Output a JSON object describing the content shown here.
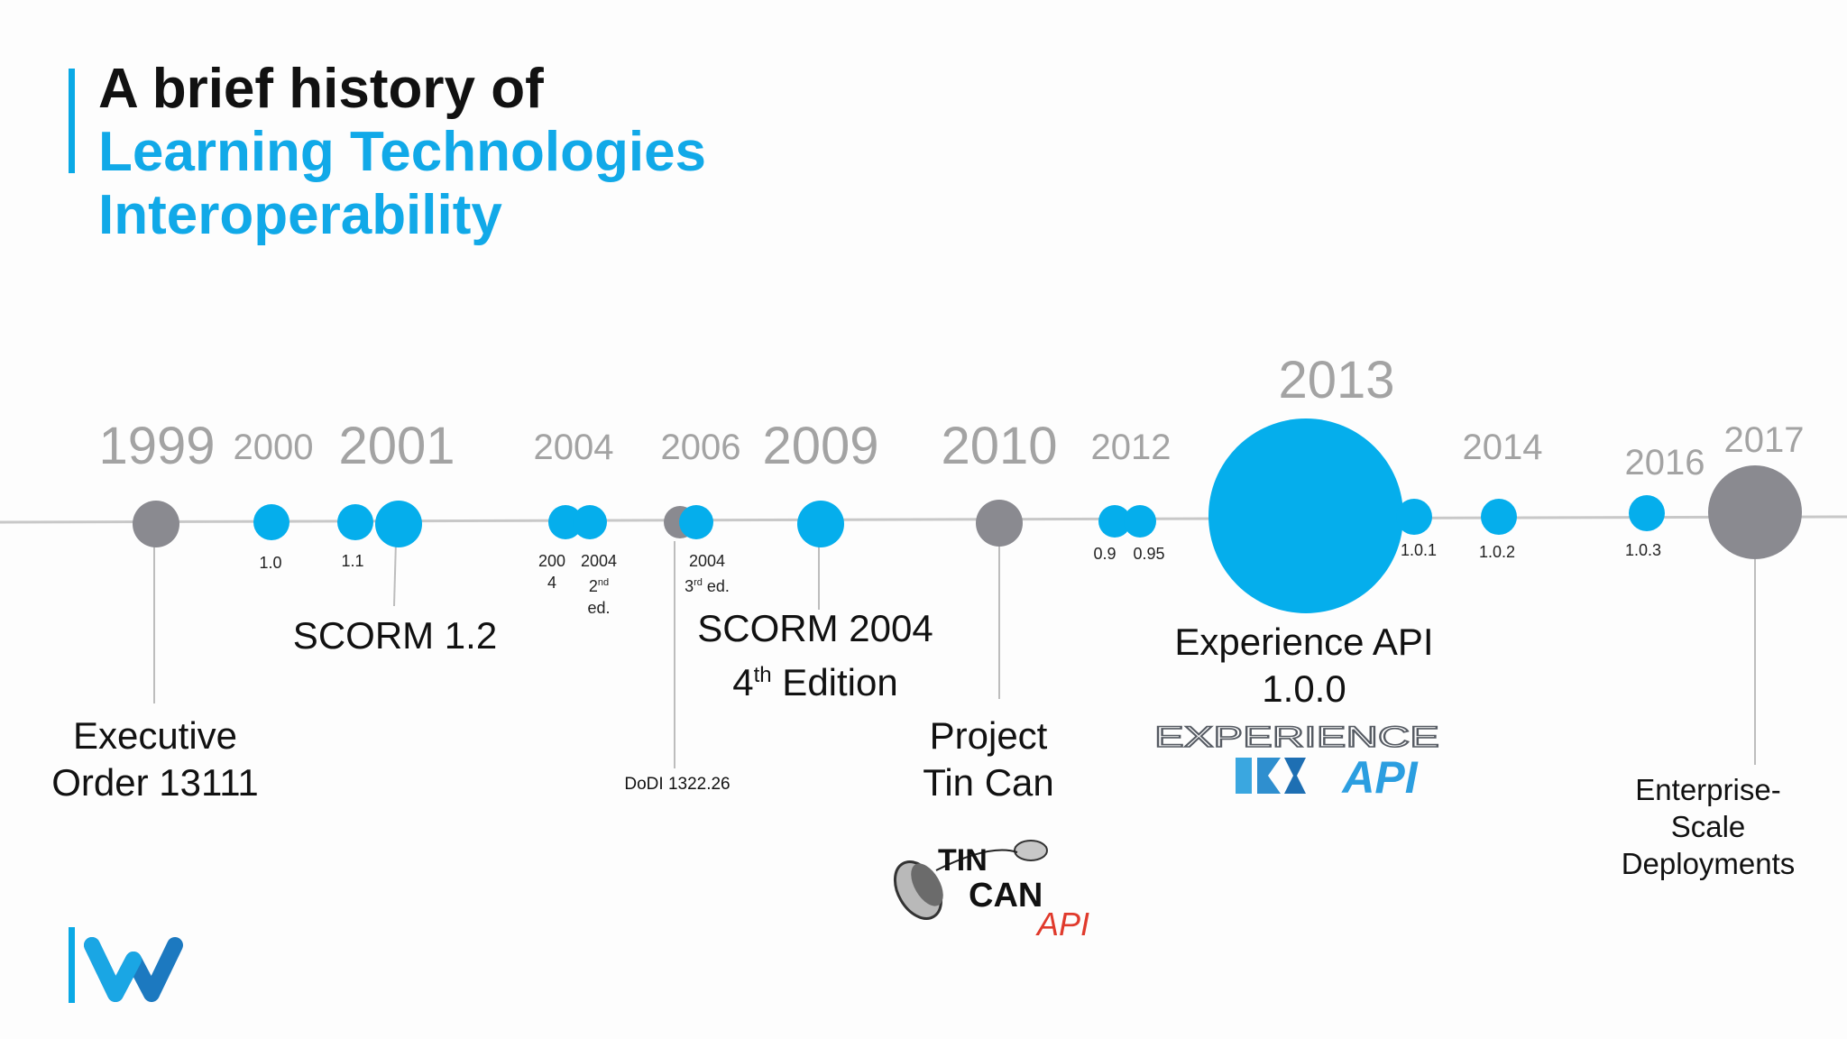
{
  "title": {
    "line1": "A brief history of",
    "line2": "Learning Technologies",
    "line3": "Interoperability"
  },
  "colors": {
    "accent": "#0aa9e6",
    "gray_node": "#8a8a90",
    "year_text": "#a3a3a3",
    "line": "#c8c8c8"
  },
  "years": [
    "1999",
    "2000",
    "2001",
    "2004",
    "2006",
    "2009",
    "2010",
    "2012",
    "2013",
    "2014",
    "2016",
    "2017"
  ],
  "versions": {
    "v1_0": "1.0",
    "v1_1": "1.1",
    "v2004_a_1": "200",
    "v2004_a_2": "4",
    "v2004_b_1": "2004",
    "v2004_b_2": "2",
    "v2004_b_sup": "nd",
    "v2004_b_3": "ed.",
    "v2004_c_1": "2004",
    "v2004_c_2": "3",
    "v2004_c_sup": "rd",
    "v2004_c_3": " ed.",
    "v0_9": "0.9",
    "v0_95": "0.95",
    "v1_0_1": "1.0.1",
    "v1_0_2": "1.0.2",
    "v1_0_3": "1.0.3"
  },
  "events": {
    "eo_1": "Executive",
    "eo_2": "Order 13111",
    "scorm12": "SCORM 1.2",
    "dodi": "DoDI 1322.26",
    "scorm2004_1": "SCORM 2004",
    "scorm2004_2a": "4",
    "scorm2004_sup": "th",
    "scorm2004_2b": " Edition",
    "tincan_1": "Project",
    "tincan_2": "Tin Can",
    "xapi_1": "Experience API",
    "xapi_2": "1.0.0",
    "ent_1": "Enterprise-",
    "ent_2": "Scale",
    "ent_3": "Deployments"
  },
  "logos": {
    "xapi_top": "EXPERIENCE",
    "xapi_bottom": "API",
    "tincan_a": "TIN",
    "tincan_b": "CAN",
    "tincan_c": "API"
  },
  "icons": [
    "company-w-logo",
    "tin-can-phone-icon"
  ]
}
